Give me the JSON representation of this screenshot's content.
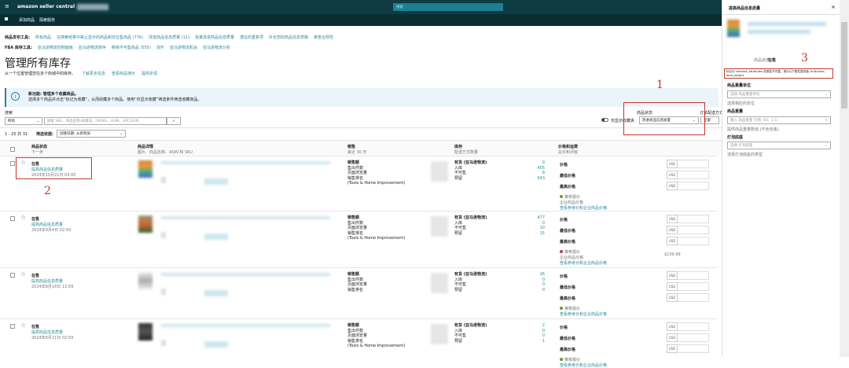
{
  "header": {
    "menu_icon": "hamburger-icon",
    "logo": "amazon seller central",
    "search_placeholder": "搜索",
    "sub_items": [
      "添加商品",
      "探索服务"
    ]
  },
  "tools": {
    "listing_label": "商品发布工具:",
    "listing_links": [
      "所有商品",
      "在搜索结果中禁止显示的商品和非在售商品 (776)",
      "改进商品信息质量 (11)",
      "批量改进商品信息质量",
      "潜在的重复项",
      "补全您的商品信息草稿",
      "审查合规性"
    ],
    "fba_label": "FBA 库存工具:",
    "fba_links": [
      "亚马逊物流控制面板",
      "亚马逊物流库存",
      "移除不可售商品 (555)",
      "货件",
      "亚马逊物流机会",
      "亚马逊物流分析"
    ]
  },
  "page": {
    "title": "管理所有库存",
    "subtitle": "从一个位置管理您在多个商城中的库存。",
    "links": [
      "了解更多信息",
      "查看商品演示",
      "提供反馈"
    ]
  },
  "banner": {
    "title": "新功能: 管理多个收藏商品。",
    "text": "选择多个商品并点击“标记为收藏”，从而收藏多个商品。使用“仅显示收藏”筛选条件筛选收藏商品。"
  },
  "search": {
    "label": "搜索",
    "scope": "所有",
    "placeholder": "搜索 SKU、商品名称/关键词、FNSKU、ASIN、UPC/EAN",
    "favorites_toggle": "仅显示收藏夹",
    "status_label": "商品状态",
    "status_value": "改进商品信息质量",
    "fulfillment_label": "订单配送方式",
    "fulfillment_value": "全部"
  },
  "list": {
    "count": "1 - 25 共 31",
    "sort_label": "筛选依据:",
    "sort_value": "创建日期: 从新到旧"
  },
  "columns": [
    {
      "title": "商品状态",
      "sub": "下一步"
    },
    {
      "title": "商品详情",
      "sub": "图片、商品名称、ASIN 和 SKU"
    },
    {
      "title": "销售",
      "sub": "最近 30 天"
    },
    {
      "title": "库存",
      "sub": "配送方式数量"
    },
    {
      "title": "价格和运费",
      "sub": "总价和评级"
    }
  ],
  "sales_labels": [
    "销售额",
    "售出件数",
    "页面浏览量",
    "销售排名"
  ],
  "category": "(Tools & Home Improvement)",
  "inv_labels": [
    "有货 (亚马逊物流)",
    "入库",
    "不可售",
    "预留"
  ],
  "price_labels": [
    "价格",
    "最低价格",
    "最高价格"
  ],
  "currency": "USD",
  "rec_price": "推荐报价",
  "biz_price": "企业商品价格",
  "ref_link": "查看参考价和企业商品价格",
  "rows": [
    {
      "status": "在售",
      "action": "提高商品信息质量",
      "date": "2024年10月21日 03:05",
      "inv": [
        "0",
        "405",
        "8",
        "543"
      ],
      "rec_color": "#6a9a2a",
      "show_cat": true,
      "show_biz": true,
      "price_note": ""
    },
    {
      "status": "在售",
      "action": "提高商品信息质量",
      "date": "2024年9月4日 02:59",
      "inv": [
        "477",
        "0",
        "10",
        "15"
      ],
      "rec_color": "#c0304a",
      "show_cat": true,
      "show_biz": true,
      "price_note": "$159.99"
    },
    {
      "status": "在售",
      "action": "提高商品信息质量",
      "date": "2024年8月16日 13:59",
      "inv": [
        "26",
        "0",
        "0",
        "0"
      ],
      "rec_color": "#6a9a2a",
      "show_cat": false,
      "show_biz": false,
      "price_note": ""
    },
    {
      "status": "在售",
      "action": "提高商品信息质量",
      "date": "2024年6月21日 02:59",
      "inv": [
        "2",
        "0",
        "0",
        "1"
      ],
      "rec_color": "#6a9a2a",
      "show_cat": true,
      "show_biz": false,
      "price_note": ""
    }
  ],
  "panel": {
    "title": "提高商品信息质量",
    "status_label": "商品状态",
    "status_value": "在售",
    "warning": "标记为 relevant_attributes 的属性不完整。请为以下属性提供值: bulb.base, item_weight",
    "f1_label": "商品重量单位",
    "f1_placeholder": "选择 商品重量单位",
    "f1_hint": "选择相应的单位",
    "f2_label": "商品重量",
    "f2_placeholder": "输入 商品重量 示例: 50、1.5",
    "f2_hint": "提供商品重量数值 (不含包装)",
    "f3_label": "灯泡底座",
    "f3_placeholder": "选择 灯泡底座",
    "f3_hint": "选择灯泡底座的类型"
  },
  "annotations": [
    "1",
    "2",
    "3"
  ],
  "colors": {
    "topbar": "#0f3b42",
    "link": "#2a8a9c",
    "annotation": "#c0392b"
  }
}
